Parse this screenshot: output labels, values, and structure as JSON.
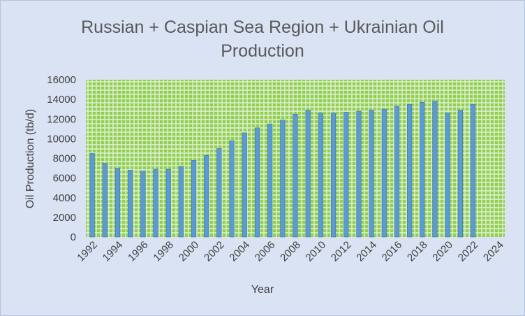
{
  "chart_data": {
    "type": "bar",
    "title_lines": [
      "Russian + Caspian Sea Region + Ukrainian Oil",
      "Production"
    ],
    "xlabel": "Year",
    "ylabel": "Oil Production (tb/d)",
    "ylim": [
      0,
      16000
    ],
    "yticks": [
      0,
      2000,
      4000,
      6000,
      8000,
      10000,
      12000,
      14000,
      16000
    ],
    "xlim": [
      1992,
      2025
    ],
    "xticks": [
      1992,
      1994,
      1996,
      1998,
      2000,
      2002,
      2004,
      2006,
      2008,
      2010,
      2012,
      2014,
      2016,
      2018,
      2020,
      2022,
      2024
    ],
    "x": [
      1992,
      1993,
      1994,
      1995,
      1996,
      1997,
      1998,
      1999,
      2000,
      2001,
      2002,
      2003,
      2004,
      2005,
      2006,
      2007,
      2008,
      2009,
      2010,
      2011,
      2012,
      2013,
      2014,
      2015,
      2016,
      2017,
      2018,
      2019,
      2020,
      2021,
      2022
    ],
    "values": [
      8500,
      7500,
      7000,
      6800,
      6700,
      6900,
      6900,
      7200,
      7800,
      8300,
      9000,
      9800,
      10600,
      11100,
      11500,
      11900,
      12500,
      12900,
      12600,
      12600,
      12700,
      12800,
      12900,
      13000,
      13300,
      13500,
      13700,
      13800,
      12600,
      12900,
      13500
    ],
    "grid": true,
    "legend": "none",
    "colors": {
      "bar": "#5b9bd5",
      "bar_edge": "#41719c",
      "plot_background": "#92d050",
      "grid": "#e2efda",
      "chart_background": "#dae3f3"
    }
  }
}
